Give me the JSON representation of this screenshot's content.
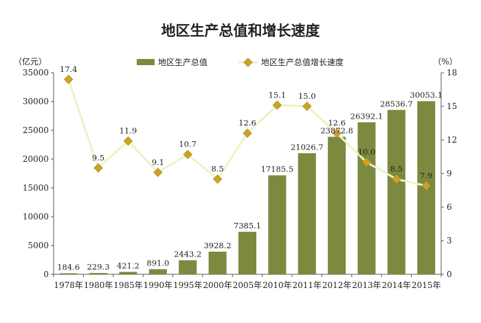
{
  "chart_data": {
    "type": "bar+line",
    "title": "地区生产总值和增长速度",
    "categories": [
      "1978年",
      "1980年",
      "1985年",
      "1990年",
      "1995年",
      "2000年",
      "2005年",
      "2010年",
      "2011年",
      "2012年",
      "2013年",
      "2014年",
      "2015年"
    ],
    "left_axis": {
      "unit": "（亿元）",
      "min": 0,
      "max": 35000,
      "ticks": [
        0,
        5000,
        10000,
        15000,
        20000,
        25000,
        30000,
        35000
      ]
    },
    "right_axis": {
      "unit": "（%）",
      "min": 0,
      "max": 18,
      "ticks": [
        0,
        3,
        6,
        9,
        12,
        15,
        18
      ]
    },
    "series": [
      {
        "name": "地区生产总值",
        "kind": "bar",
        "axis": "left",
        "color": "#7b8a3e",
        "values": [
          184.6,
          229.3,
          421.2,
          891.0,
          2443.2,
          3928.2,
          7385.1,
          17185.5,
          21026.7,
          23872.8,
          26392.1,
          28536.7,
          30053.1
        ],
        "labels": [
          "184.6",
          "229.3",
          "421.2",
          "891.0",
          "2443.2",
          "3928.2",
          "7385.1",
          "17185.5",
          "21026.7",
          "23872.8",
          "26392.1",
          "28536.7",
          "30053.1"
        ]
      },
      {
        "name": "地区生产总值增长速度",
        "kind": "line",
        "axis": "right",
        "color": "#c9a227",
        "line_color": "#eef3c4",
        "values": [
          17.4,
          9.5,
          11.9,
          9.1,
          10.7,
          8.5,
          12.6,
          15.1,
          15.0,
          12.6,
          10.0,
          8.5,
          7.9
        ],
        "labels": [
          "17.4",
          "9.5",
          "11.9",
          "9.1",
          "10.7",
          "8.5",
          "12.6",
          "15.1",
          "15.0",
          "12.6",
          "10.0",
          "8.5",
          "7.9"
        ]
      }
    ],
    "legend": "top-center",
    "grid": false
  }
}
